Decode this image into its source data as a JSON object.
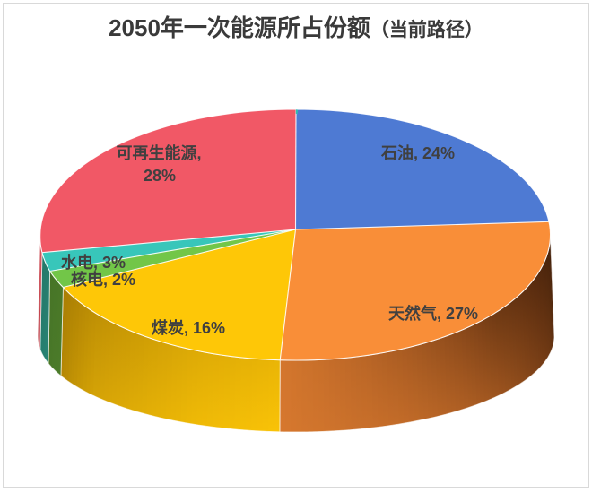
{
  "title": {
    "main": "2050年一次能源所占份额",
    "paren": "（当前路径）"
  },
  "chart_data": {
    "type": "pie",
    "style": "3d",
    "title": "2050年一次能源所占份额（当前路径）",
    "unit": "%",
    "start_angle_deg": 0,
    "direction": "clockwise",
    "categories": [
      "石油",
      "天然气",
      "煤炭",
      "核电",
      "水电",
      "可再生能源"
    ],
    "values": [
      24,
      27,
      16,
      2,
      3,
      28
    ],
    "series": [
      {
        "name": "石油",
        "value": 24,
        "label": "石油, 24%",
        "color": "#4e7ad3"
      },
      {
        "name": "天然气",
        "value": 27,
        "label": "天然气, 27%",
        "color": "#f98e38"
      },
      {
        "name": "煤炭",
        "value": 16,
        "label": "煤炭, 16%",
        "color": "#fec707"
      },
      {
        "name": "核电",
        "value": 2,
        "label": "核电, 2%",
        "color": "#72c648"
      },
      {
        "name": "水电",
        "value": 3,
        "label": "水电, 3%",
        "color": "#38c6ba"
      },
      {
        "name": "可再生能源",
        "value": 28,
        "label": "可再生能源, 28%",
        "color": "#f15866"
      }
    ],
    "label_color": "#404040",
    "title_color": "#3a3a3a",
    "border_color": "#d9d9d9",
    "background": "#ffffff",
    "legend": "none"
  }
}
